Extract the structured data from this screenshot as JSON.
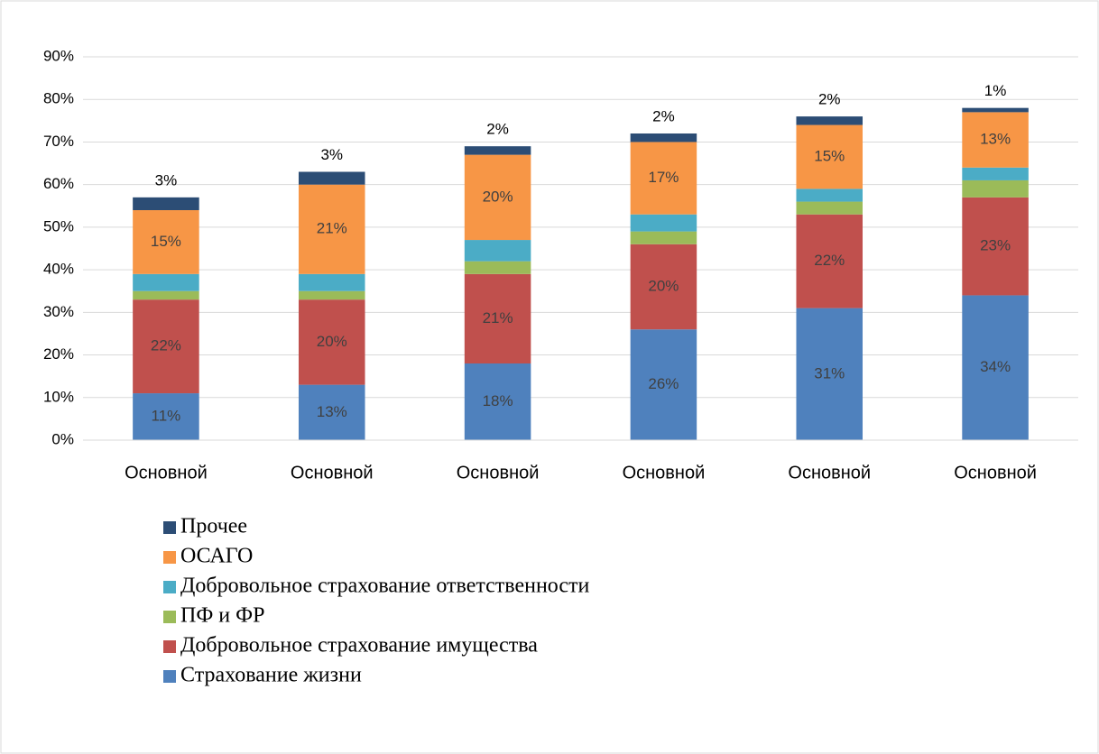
{
  "chart_data": {
    "type": "stacked_bar",
    "categories": [
      "Основной",
      "Основной",
      "Основной",
      "Основной",
      "Основной",
      "Основной"
    ],
    "series": [
      {
        "name": "Страхование жизни",
        "color": "#4f81bd",
        "values": [
          11,
          13,
          18,
          26,
          31,
          34
        ],
        "value_labels": [
          "11%",
          "13%",
          "18%",
          "26%",
          "31%",
          "34%"
        ]
      },
      {
        "name": "Добровольное страхование имущества",
        "color": "#c0504d",
        "values": [
          22,
          20,
          21,
          20,
          22,
          23
        ],
        "value_labels": [
          "22%",
          "20%",
          "21%",
          "20%",
          "22%",
          "23%"
        ]
      },
      {
        "name": "ПФ и ФР",
        "color": "#9bbb59",
        "values": [
          2,
          2,
          3,
          3,
          3,
          4
        ]
      },
      {
        "name": "Добровольное страхование ответственности",
        "color": "#4bacc6",
        "values": [
          4,
          4,
          5,
          4,
          3,
          3
        ]
      },
      {
        "name": "ОСАГО",
        "color": "#f79646",
        "values": [
          15,
          21,
          20,
          17,
          15,
          13
        ],
        "value_labels": [
          "15%",
          "21%",
          "20%",
          "17%",
          "15%",
          "13%"
        ]
      },
      {
        "name": "Прочее",
        "color": "#2c4d75",
        "values": [
          3,
          3,
          2,
          2,
          2,
          1
        ],
        "value_labels": [
          "3%",
          "3%",
          "2%",
          "2%",
          "2%",
          "1%"
        ]
      }
    ],
    "ylim": [
      0,
      90
    ],
    "yticks": [
      {
        "value": 0,
        "label": "0%"
      },
      {
        "value": 10,
        "label": "10%"
      },
      {
        "value": 20,
        "label": "20%"
      },
      {
        "value": 30,
        "label": "30%"
      },
      {
        "value": 40,
        "label": "40%"
      },
      {
        "value": 50,
        "label": "50%"
      },
      {
        "value": 60,
        "label": "60%"
      },
      {
        "value": 70,
        "label": "70%"
      },
      {
        "value": 80,
        "label": "80%"
      },
      {
        "value": 90,
        "label": "90%"
      }
    ],
    "grid": true
  }
}
